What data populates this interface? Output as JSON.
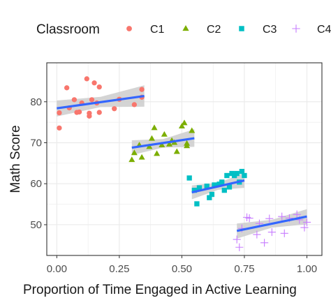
{
  "colors": {
    "C1": "#F8766D",
    "C2": "#7CAE00",
    "C3": "#00BFC4",
    "C4": "#C77CFF",
    "fit": "#3366FF",
    "ribbon": "#cccccc",
    "panel_border": "#333333",
    "grid": "#ebebeb"
  },
  "chart_data": {
    "type": "scatter",
    "xlabel": "Proportion of Time Engaged in Active Learning",
    "ylabel": "Math Score",
    "xlim": [
      -0.04,
      1.06
    ],
    "ylim": [
      42.5,
      89.5
    ],
    "x_ticks": [
      0,
      0.25,
      0.5,
      0.75,
      1
    ],
    "x_tick_labels": [
      "0.00",
      "0.25",
      "0.50",
      "0.75",
      "1.00"
    ],
    "y_ticks": [
      50,
      60,
      70,
      80
    ],
    "y_tick_labels": [
      "50",
      "60",
      "70",
      "80"
    ],
    "grid": true,
    "legend": {
      "title": "Classroom",
      "position": "top",
      "items": [
        {
          "label": "C1",
          "shape": "circle"
        },
        {
          "label": "C2",
          "shape": "triangle"
        },
        {
          "label": "C3",
          "shape": "square"
        },
        {
          "label": "C4",
          "shape": "plus"
        }
      ]
    },
    "series": [
      {
        "name": "C1",
        "points": [
          [
            0.01,
            77.3
          ],
          [
            0.01,
            73.6
          ],
          [
            0.04,
            83.4
          ],
          [
            0.05,
            78.5
          ],
          [
            0.07,
            80.5
          ],
          [
            0.08,
            77.4
          ],
          [
            0.09,
            77.5
          ],
          [
            0.1,
            79.7
          ],
          [
            0.12,
            85.6
          ],
          [
            0.13,
            76.5
          ],
          [
            0.13,
            77.2
          ],
          [
            0.14,
            80.5
          ],
          [
            0.15,
            84.6
          ],
          [
            0.16,
            79.7
          ],
          [
            0.17,
            83.6
          ],
          [
            0.17,
            77.4
          ],
          [
            0.23,
            78.3
          ],
          [
            0.25,
            80.6
          ],
          [
            0.31,
            79.3
          ],
          [
            0.34,
            83.0
          ],
          [
            0.34,
            81.1
          ]
        ],
        "fit": [
          [
            0.0,
            78.4
          ],
          [
            0.35,
            81.4
          ]
        ],
        "band": [
          [
            0.0,
            80.3,
            76.4
          ],
          [
            0.175,
            81.2,
            78.7
          ],
          [
            0.35,
            84.0,
            78.8
          ]
        ]
      },
      {
        "name": "C2",
        "points": [
          [
            0.3,
            65.8
          ],
          [
            0.31,
            67.5
          ],
          [
            0.33,
            69.4
          ],
          [
            0.34,
            66.4
          ],
          [
            0.37,
            69.0
          ],
          [
            0.38,
            71.0
          ],
          [
            0.39,
            73.6
          ],
          [
            0.4,
            67.3
          ],
          [
            0.42,
            69.4
          ],
          [
            0.43,
            72.0
          ],
          [
            0.45,
            69.6
          ],
          [
            0.46,
            70.5
          ],
          [
            0.47,
            70.0
          ],
          [
            0.48,
            67.8
          ],
          [
            0.5,
            74.0
          ],
          [
            0.51,
            74.8
          ],
          [
            0.52,
            69.8
          ],
          [
            0.52,
            69.2
          ],
          [
            0.54,
            72.9
          ]
        ],
        "fit": [
          [
            0.3,
            68.8
          ],
          [
            0.55,
            71.1
          ]
        ],
        "band": [
          [
            0.3,
            70.6,
            67.0
          ],
          [
            0.425,
            70.9,
            68.8
          ],
          [
            0.55,
            73.3,
            69.0
          ]
        ]
      },
      {
        "name": "C3",
        "points": [
          [
            0.53,
            61.4
          ],
          [
            0.55,
            58.4
          ],
          [
            0.56,
            55.1
          ],
          [
            0.57,
            59.0
          ],
          [
            0.6,
            59.4
          ],
          [
            0.61,
            56.6
          ],
          [
            0.62,
            57.4
          ],
          [
            0.63,
            59.7
          ],
          [
            0.65,
            59.9
          ],
          [
            0.66,
            60.4
          ],
          [
            0.67,
            58.4
          ],
          [
            0.68,
            62.0
          ],
          [
            0.69,
            59.2
          ],
          [
            0.7,
            62.5
          ],
          [
            0.71,
            62.0
          ],
          [
            0.72,
            62.5
          ],
          [
            0.73,
            60.4
          ],
          [
            0.74,
            63.0
          ],
          [
            0.75,
            62.0
          ]
        ],
        "fit": [
          [
            0.54,
            57.9
          ],
          [
            0.75,
            60.8
          ]
        ],
        "band": [
          [
            0.54,
            59.6,
            56.2
          ],
          [
            0.645,
            60.2,
            58.5
          ],
          [
            0.75,
            62.6,
            59.0
          ]
        ]
      },
      {
        "name": "C4",
        "points": [
          [
            0.72,
            46.4
          ],
          [
            0.73,
            44.5
          ],
          [
            0.74,
            49.1
          ],
          [
            0.76,
            51.8
          ],
          [
            0.77,
            51.6
          ],
          [
            0.8,
            47.6
          ],
          [
            0.81,
            50.3
          ],
          [
            0.83,
            45.6
          ],
          [
            0.85,
            51.5
          ],
          [
            0.86,
            48.2
          ],
          [
            0.9,
            52.0
          ],
          [
            0.91,
            47.9
          ],
          [
            0.93,
            51.6
          ],
          [
            0.96,
            52.5
          ],
          [
            0.97,
            51.2
          ],
          [
            0.99,
            49.3
          ],
          [
            1.0,
            50.6
          ]
        ],
        "fit": [
          [
            0.72,
            48.5
          ],
          [
            1.0,
            52.0
          ]
        ],
        "band": [
          [
            0.72,
            50.3,
            46.6
          ],
          [
            0.86,
            51.2,
            49.3
          ],
          [
            1.0,
            53.8,
            50.1
          ]
        ]
      }
    ]
  }
}
